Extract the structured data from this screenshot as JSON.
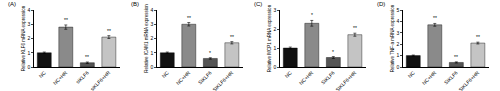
{
  "chart_data": [
    {
      "type": "bar",
      "title": "(A)",
      "y_label": "Relative KLF6 mRNA expression",
      "categories": [
        "NC",
        "NC+HR",
        "siKLF6",
        "siKLF6+HR"
      ],
      "values": [
        1.0,
        2.8,
        0.3,
        2.1
      ],
      "errors": [
        0.05,
        0.15,
        0.05,
        0.1
      ],
      "significance": [
        null,
        "**",
        "**",
        "**"
      ],
      "colors": [
        "#111111",
        "#8a8a8a",
        "#555555",
        "#c4c4c4"
      ],
      "ylim": [
        0,
        4
      ],
      "yticks": [
        0,
        1,
        2,
        3,
        4
      ],
      "grid": false
    },
    {
      "type": "bar",
      "title": "(B)",
      "y_label": "Relative ICAM1 mRNA expression",
      "categories": [
        "NC",
        "NC+HR",
        "SIKLF6",
        "SIKLF6+HR"
      ],
      "values": [
        1.0,
        3.0,
        0.6,
        1.7
      ],
      "errors": [
        0.05,
        0.12,
        0.05,
        0.08
      ],
      "significance": [
        null,
        "**",
        "*",
        "**"
      ],
      "colors": [
        "#111111",
        "#8a8a8a",
        "#555555",
        "#c4c4c4"
      ],
      "ylim": [
        0,
        4
      ],
      "yticks": [
        0,
        1,
        2,
        3,
        4
      ],
      "grid": false
    },
    {
      "type": "bar",
      "title": "(C)",
      "y_label": "Relative MCP1 mRNA expression",
      "categories": [
        "NC",
        "NC+HR",
        "SIKLF6",
        "SIKLF6+HR"
      ],
      "values": [
        1.0,
        2.3,
        0.5,
        1.7
      ],
      "errors": [
        0.05,
        0.15,
        0.05,
        0.08
      ],
      "significance": [
        null,
        "*",
        "*",
        "**"
      ],
      "colors": [
        "#111111",
        "#8a8a8a",
        "#555555",
        "#c4c4c4"
      ],
      "ylim": [
        0,
        3
      ],
      "yticks": [
        0,
        1,
        2,
        3
      ],
      "grid": false
    },
    {
      "type": "bar",
      "title": "(D)",
      "y_label": "Relative TNF-a mRNA expression",
      "categories": [
        "NC",
        "NC+HR",
        "SIKLF6",
        "SIKLF6+HR"
      ],
      "values": [
        1.0,
        3.7,
        0.4,
        2.1
      ],
      "errors": [
        0.05,
        0.12,
        0.05,
        0.08
      ],
      "significance": [
        null,
        "**",
        "**",
        "**"
      ],
      "colors": [
        "#111111",
        "#8a8a8a",
        "#555555",
        "#c4c4c4"
      ],
      "ylim": [
        0,
        5
      ],
      "yticks": [
        0,
        1,
        2,
        3,
        4,
        5
      ],
      "grid": false
    }
  ]
}
